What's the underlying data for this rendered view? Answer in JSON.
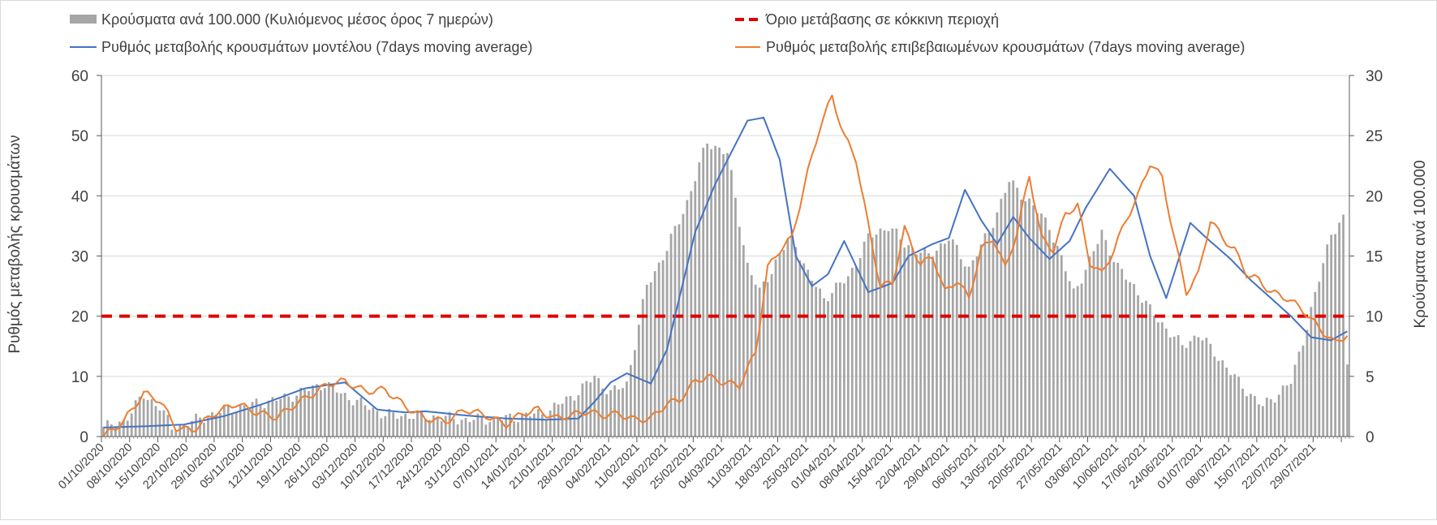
{
  "chart_data": {
    "type": "combo-bar-line",
    "legend": {
      "placement": "top",
      "items": [
        {
          "label": "Κρούσματα ανά 100.000 (Κυλιόμενος μέσος όρος 7 ημερών)",
          "kind": "bar",
          "color": "#a6a6a6"
        },
        {
          "label": "Όριο μετάβασης σε κόκκινη περιοχή",
          "kind": "dashed-line",
          "color": "#e00000"
        },
        {
          "label": "Ρυθμός μεταβολής κρουσμάτων μοντέλου (7days moving average)",
          "kind": "line",
          "color": "#4472c4"
        },
        {
          "label": "Ρυθμός μεταβολής επιβεβαιωμένων κρουσμάτων (7days moving average)",
          "kind": "line",
          "color": "#ed7d31"
        }
      ]
    },
    "y_left": {
      "label": "Ρυθμός μεταβολής κρουσμάτων",
      "min": 0,
      "max": 60,
      "ticks": [
        0,
        10,
        20,
        30,
        40,
        50,
        60
      ]
    },
    "y_right": {
      "label": "Κρούσματα ανά 100.000",
      "min": 0,
      "max": 30,
      "ticks": [
        0,
        5,
        10,
        15,
        20,
        25,
        30
      ]
    },
    "x_tick_labels": [
      "01/10/2020",
      "08/10/2020",
      "15/10/2020",
      "22/10/2020",
      "29/10/2020",
      "05/11/2020",
      "12/11/2020",
      "19/11/2020",
      "26/11/2020",
      "03/12/2020",
      "10/12/2020",
      "17/12/2020",
      "24/12/2020",
      "31/12/2020",
      "07/01/2021",
      "14/01/2021",
      "21/01/2021",
      "28/01/2021",
      "04/02/2021",
      "11/02/2021",
      "18/02/2021",
      "25/02/2021",
      "04/03/2021",
      "11/03/2021",
      "18/03/2021",
      "25/03/2021",
      "01/04/2021",
      "08/04/2021",
      "15/04/2021",
      "22/04/2021",
      "29/04/2021",
      "06/05/2021",
      "13/05/2021",
      "20/05/2021",
      "27/05/2021",
      "03/06/2021",
      "10/06/2021",
      "17/06/2021",
      "24/06/2021",
      "01/07/2021",
      "08/07/2021",
      "15/07/2021",
      "22/07/2021",
      "29/07/2021"
    ],
    "total_days": 310,
    "threshold": {
      "value": 20,
      "axis": "left"
    },
    "bars_keyframes": {
      "axis": "right",
      "days": [
        0,
        2,
        5,
        10,
        14,
        17,
        20,
        30,
        45,
        55,
        60,
        70,
        80,
        90,
        100,
        110,
        118,
        122,
        126,
        130,
        135,
        140,
        145,
        150,
        155,
        160,
        163,
        167,
        171,
        175,
        179,
        185,
        190,
        195,
        199,
        205,
        210,
        215,
        220,
        225,
        230,
        235,
        241,
        245,
        248,
        252,
        256,
        260,
        264,
        268,
        272,
        276,
        282,
        288,
        295,
        298,
        302,
        305,
        308,
        309
      ],
      "values": [
        0.8,
        0.9,
        1.3,
        3.4,
        2.5,
        0.7,
        1.0,
        2.2,
        3.2,
        4.4,
        3.4,
        1.8,
        1.7,
        1.4,
        1.5,
        2.0,
        3.7,
        5.0,
        3.6,
        4.4,
        12.5,
        15.6,
        19.5,
        24.5,
        23.5,
        14.2,
        12.0,
        14.5,
        16.8,
        13.5,
        11.5,
        13.2,
        16.5,
        17.5,
        16.0,
        15.0,
        16.5,
        14.0,
        17.0,
        21.2,
        19.5,
        17.5,
        12.0,
        14.5,
        17.0,
        14.0,
        12.5,
        10.5,
        9.0,
        7.5,
        8.5,
        7.0,
        4.5,
        2.5,
        4.5,
        8.0,
        13.0,
        17.0,
        18.0,
        6.0
      ]
    },
    "series": [
      {
        "name": "Ρυθμός μεταβολής κρουσμάτων μοντέλου (7days moving average)",
        "axis": "left",
        "color": "#4472c4",
        "days": [
          0,
          10,
          20,
          30,
          40,
          50,
          60,
          68,
          75,
          80,
          90,
          100,
          110,
          118,
          122,
          126,
          130,
          136,
          140,
          147,
          152,
          160,
          164,
          168,
          172,
          176,
          180,
          184,
          190,
          196,
          200,
          206,
          210,
          214,
          218,
          222,
          226,
          230,
          235,
          240,
          244,
          250,
          256,
          260,
          264,
          270,
          274,
          280,
          285,
          290,
          295,
          300,
          305,
          309
        ],
        "values": [
          1.5,
          1.7,
          2.0,
          3.4,
          5.5,
          8.0,
          9.0,
          4.5,
          4.0,
          4.2,
          3.5,
          3.0,
          2.8,
          3.0,
          5.8,
          9.0,
          10.5,
          8.8,
          14.5,
          34.0,
          42.0,
          52.5,
          53.0,
          46.0,
          30.0,
          25.0,
          27.0,
          32.5,
          24.0,
          25.5,
          30.0,
          32.0,
          33.0,
          41.0,
          36.0,
          32.0,
          36.5,
          33.0,
          29.5,
          32.5,
          38.0,
          44.5,
          40.0,
          30.0,
          23.0,
          35.5,
          33.0,
          29.5,
          26.0,
          23.0,
          20.0,
          16.5,
          16.0,
          17.5
        ]
      },
      {
        "name": "Ρυθμός μεταβολής επιβεβαιωμένων κρουσμάτων (7days moving average)",
        "axis": "left",
        "color": "#ed7d31",
        "days": [
          0,
          5,
          10,
          14,
          18,
          22,
          28,
          33,
          38,
          43,
          48,
          53,
          56,
          60,
          65,
          70,
          75,
          80,
          85,
          90,
          95,
          100,
          104,
          108,
          112,
          116,
          120,
          124,
          128,
          132,
          136,
          140,
          143,
          147,
          150,
          154,
          158,
          162,
          165,
          168,
          171,
          175,
          178,
          181,
          184,
          187,
          190,
          193,
          196,
          199,
          203,
          206,
          209,
          212,
          215,
          218,
          221,
          224,
          227,
          230,
          233,
          236,
          239,
          242,
          245,
          248,
          251,
          254,
          257,
          260,
          263,
          266,
          269,
          272,
          275,
          278,
          281,
          284,
          287,
          290,
          294,
          298,
          302,
          306,
          309
        ],
        "values": [
          0,
          2.5,
          7.2,
          6.0,
          1.5,
          1.0,
          4.0,
          5.5,
          4.0,
          3.2,
          5.5,
          7.5,
          8.8,
          9.2,
          7.5,
          7.8,
          5.0,
          3.0,
          2.5,
          4.5,
          3.5,
          2.0,
          3.8,
          4.5,
          3.0,
          3.5,
          4.2,
          3.5,
          3.8,
          2.8,
          3.0,
          5.5,
          6.0,
          9.2,
          10.0,
          9.0,
          8.5,
          14.0,
          28.0,
          31.0,
          33.0,
          44.0,
          51.5,
          56.5,
          50.0,
          46.0,
          35.0,
          25.0,
          25.5,
          34.5,
          28.5,
          30.0,
          24.0,
          26.0,
          23.0,
          31.0,
          33.0,
          28.0,
          34.0,
          43.5,
          33.0,
          31.0,
          37.0,
          38.5,
          29.0,
          27.0,
          31.0,
          36.0,
          40.0,
          45.5,
          43.0,
          33.0,
          24.0,
          27.0,
          36.0,
          33.0,
          31.0,
          27.0,
          26.0,
          24.0,
          23.0,
          21.0,
          18.0,
          15.5,
          17.0
        ]
      }
    ]
  }
}
